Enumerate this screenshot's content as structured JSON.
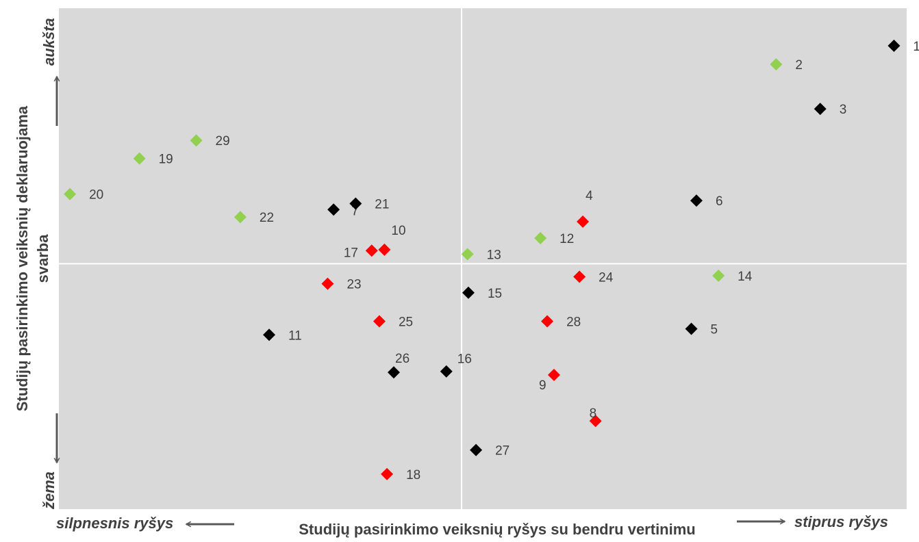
{
  "chart_data": {
    "type": "scatter",
    "title": "",
    "xlabel": "Studijų pasirinkimo veiksnių ryšys su bendru vertinimu",
    "ylabel_line1": "Studijų pasirinkimo veiksnių deklaruojama",
    "ylabel_line2": "svarba",
    "x_low_label": "silpnesnis ryšys",
    "x_high_label": "stiprus ryšys",
    "y_high_label": "aukšta",
    "y_low_label": "žema",
    "xlim": [
      0,
      100
    ],
    "ylim": [
      0,
      100
    ],
    "x_center": 47.5,
    "y_center": 49,
    "grid": false,
    "colors": {
      "black": "#000000",
      "red": "#ff0000",
      "green": "#92d050",
      "plot_bg": "#d9d9d9",
      "text": "#404040",
      "arrow": "#595959"
    },
    "points": [
      {
        "label": "1",
        "x": 98.5,
        "y": 92.5,
        "color": "black"
      },
      {
        "label": "2",
        "x": 84.6,
        "y": 88.8,
        "color": "green"
      },
      {
        "label": "3",
        "x": 89.8,
        "y": 79.9,
        "color": "black"
      },
      {
        "label": "4",
        "x": 61.8,
        "y": 57.4,
        "color": "red"
      },
      {
        "label": "5",
        "x": 74.6,
        "y": 36.0,
        "color": "black"
      },
      {
        "label": "6",
        "x": 75.2,
        "y": 61.6,
        "color": "black"
      },
      {
        "label": "7",
        "x": 32.4,
        "y": 59.8,
        "color": "black"
      },
      {
        "label": "8",
        "x": 63.3,
        "y": 17.6,
        "color": "red"
      },
      {
        "label": "9",
        "x": 58.4,
        "y": 26.8,
        "color": "red"
      },
      {
        "label": "10",
        "x": 38.4,
        "y": 51.8,
        "color": "red"
      },
      {
        "label": "11",
        "x": 24.8,
        "y": 34.8,
        "color": "black"
      },
      {
        "label": "12",
        "x": 56.8,
        "y": 54.1,
        "color": "green"
      },
      {
        "label": "13",
        "x": 48.2,
        "y": 50.9,
        "color": "green"
      },
      {
        "label": "14",
        "x": 77.8,
        "y": 46.6,
        "color": "green"
      },
      {
        "label": "15",
        "x": 48.3,
        "y": 43.2,
        "color": "black"
      },
      {
        "label": "16",
        "x": 45.7,
        "y": 27.5,
        "color": "black"
      },
      {
        "label": "17",
        "x": 36.9,
        "y": 51.6,
        "color": "red"
      },
      {
        "label": "18",
        "x": 38.7,
        "y": 7.0,
        "color": "red"
      },
      {
        "label": "19",
        "x": 9.5,
        "y": 70.0,
        "color": "green"
      },
      {
        "label": "20",
        "x": 1.3,
        "y": 62.9,
        "color": "green"
      },
      {
        "label": "21",
        "x": 35.0,
        "y": 61.0,
        "color": "black"
      },
      {
        "label": "22",
        "x": 21.4,
        "y": 58.3,
        "color": "green"
      },
      {
        "label": "23",
        "x": 31.7,
        "y": 45.0,
        "color": "red"
      },
      {
        "label": "24",
        "x": 61.4,
        "y": 46.4,
        "color": "red"
      },
      {
        "label": "25",
        "x": 37.8,
        "y": 37.5,
        "color": "red"
      },
      {
        "label": "26",
        "x": 39.5,
        "y": 27.3,
        "color": "black"
      },
      {
        "label": "27",
        "x": 49.2,
        "y": 11.8,
        "color": "black"
      },
      {
        "label": "28",
        "x": 57.6,
        "y": 37.5,
        "color": "red"
      },
      {
        "label": "29",
        "x": 16.2,
        "y": 73.6,
        "color": "green"
      }
    ]
  }
}
